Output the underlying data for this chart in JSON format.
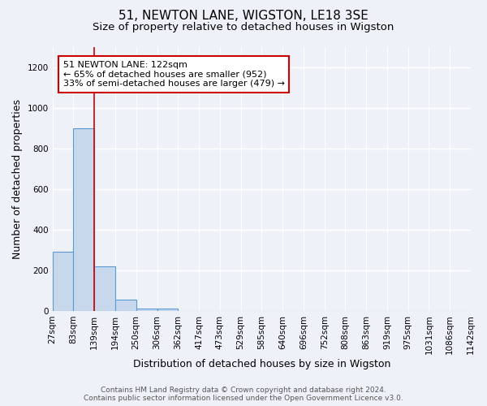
{
  "title": "51, NEWTON LANE, WIGSTON, LE18 3SE",
  "subtitle": "Size of property relative to detached houses in Wigston",
  "xlabel": "Distribution of detached houses by size in Wigston",
  "ylabel": "Number of detached properties",
  "footer_line1": "Contains HM Land Registry data © Crown copyright and database right 2024.",
  "footer_line2": "Contains public sector information licensed under the Open Government Licence v3.0.",
  "bin_labels": [
    "27sqm",
    "83sqm",
    "139sqm",
    "194sqm",
    "250sqm",
    "306sqm",
    "362sqm",
    "417sqm",
    "473sqm",
    "529sqm",
    "585sqm",
    "640sqm",
    "696sqm",
    "752sqm",
    "808sqm",
    "863sqm",
    "919sqm",
    "975sqm",
    "1031sqm",
    "1086sqm",
    "1142sqm"
  ],
  "bar_values": [
    290,
    900,
    220,
    55,
    10,
    10,
    0,
    0,
    0,
    0,
    0,
    0,
    0,
    0,
    0,
    0,
    0,
    0,
    0,
    0
  ],
  "bar_color": "#c8d8ec",
  "bar_edge_color": "#5b9bd5",
  "ylim": [
    0,
    1300
  ],
  "yticks": [
    0,
    200,
    400,
    600,
    800,
    1000,
    1200
  ],
  "property_line_color": "#cc0000",
  "annotation_text": "51 NEWTON LANE: 122sqm\n← 65% of detached houses are smaller (952)\n33% of semi-detached houses are larger (479) →",
  "annotation_box_color": "#ffffff",
  "annotation_border_color": "#cc0000",
  "bg_color": "#eef2f8",
  "grid_color": "#ffffff",
  "title_fontsize": 11,
  "subtitle_fontsize": 9.5,
  "axis_label_fontsize": 9,
  "tick_fontsize": 7.5,
  "annotation_fontsize": 8,
  "footer_fontsize": 6.5
}
